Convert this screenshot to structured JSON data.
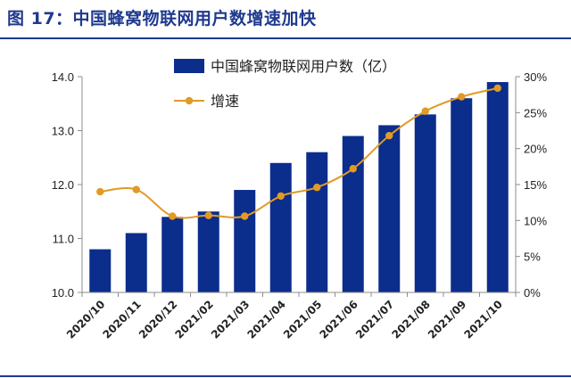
{
  "header": {
    "title": "图 17：中国蜂窝物联网用户数增速加快"
  },
  "colors": {
    "title": "#1f3a8f",
    "rule": "#1f3a8f",
    "bar": "#0b2d8c",
    "line": "#e09a25",
    "axis": "#8c8c8c"
  },
  "chart_data": {
    "type": "bar",
    "categories": [
      "2020/10",
      "2020/11",
      "2020/12",
      "2021/02",
      "2021/03",
      "2021/04",
      "2021/05",
      "2021/06",
      "2021/07",
      "2021/08",
      "2021/09",
      "2021/10"
    ],
    "series": [
      {
        "name": "中国蜂窝物联网用户数（亿）",
        "type": "bar",
        "axis": "left",
        "values": [
          10.8,
          11.1,
          11.4,
          11.5,
          11.9,
          12.4,
          12.6,
          12.9,
          13.1,
          13.3,
          13.6,
          13.9
        ]
      },
      {
        "name": "增速",
        "type": "line",
        "axis": "right",
        "values": [
          14.0,
          14.3,
          10.6,
          10.7,
          10.6,
          13.4,
          14.6,
          17.2,
          21.8,
          25.2,
          27.2,
          28.4
        ]
      }
    ],
    "ylim_left": [
      10.0,
      14.0
    ],
    "ylim_right": [
      0,
      30
    ],
    "yticks_left": [
      "10.0",
      "11.0",
      "12.0",
      "13.0",
      "14.0"
    ],
    "yticks_right": [
      "0%",
      "5%",
      "10%",
      "15%",
      "20%",
      "25%",
      "30%"
    ],
    "legend_position": "top-left",
    "grid": false
  }
}
